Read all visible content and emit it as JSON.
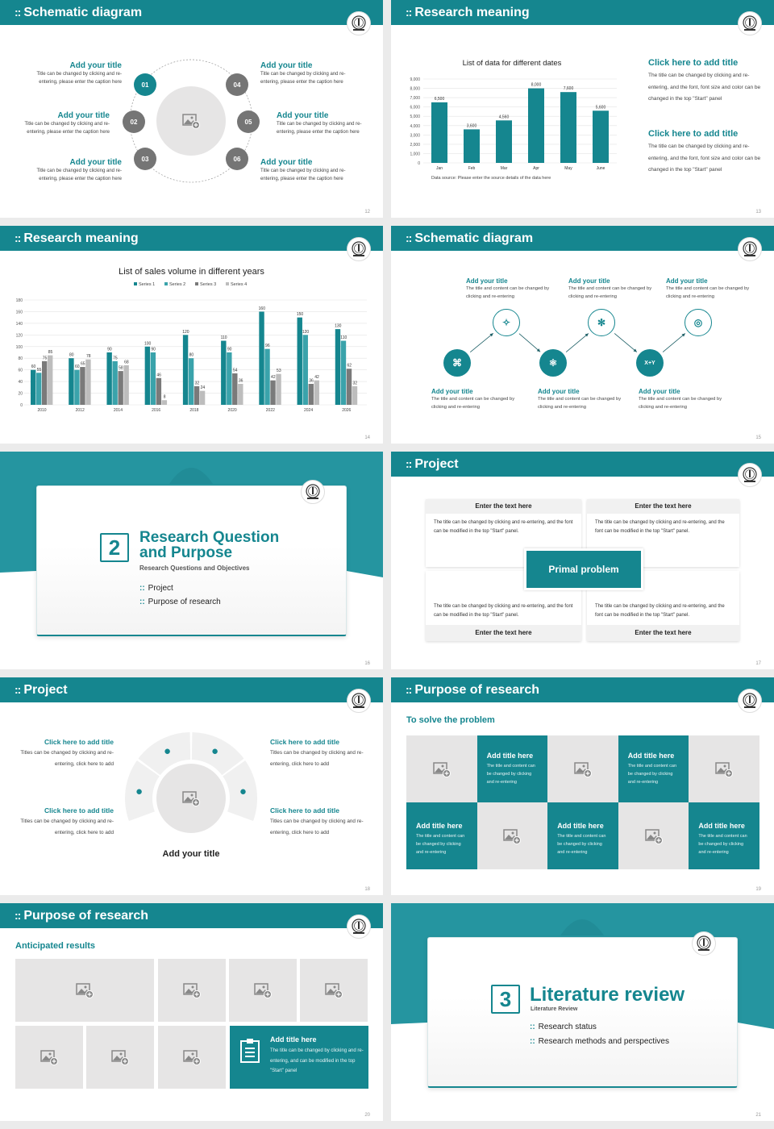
{
  "colors": {
    "accent": "#15868f",
    "accent_light": "#3aa3ab",
    "series3": "#7a7a7a",
    "series4": "#bdbdbd",
    "placeholder": "#e6e5e5"
  },
  "icons": {
    "logo": "university-seal-icon",
    "placeholder": "image-add-icon"
  },
  "slides": {
    "s12": {
      "header": "Schematic diagram",
      "page": "12",
      "items": [
        {
          "num": "01",
          "title": "Add your title",
          "body": "Title can be changed by clicking and re-entering, please enter the caption here"
        },
        {
          "num": "02",
          "title": "Add your title",
          "body": "Title can be changed by clicking and re-entering, please enter the caption here"
        },
        {
          "num": "03",
          "title": "Add your title",
          "body": "Title can be changed by clicking and re-entering, please enter the caption here"
        },
        {
          "num": "04",
          "title": "Add your title",
          "body": "Title can be changed by clicking and re-entering, please enter the caption here"
        },
        {
          "num": "05",
          "title": "Add your title",
          "body": "Title can be changed by clicking and re-entering, please enter the caption here"
        },
        {
          "num": "06",
          "title": "Add your title",
          "body": "Title can be changed by clicking and re-entering, please enter the caption here"
        }
      ]
    },
    "s13": {
      "header": "Research meaning",
      "page": "13",
      "source": "Data source: Please enter the source details of the data here",
      "blocks": [
        {
          "title": "Click here to add title",
          "body": "The title can be changed by clicking and re-entering, and the font, font size and color can be changed in the top \"Start\" panel"
        },
        {
          "title": "Click here to add title",
          "body": "The title can be changed by clicking and re-entering, and the font, font size and color can be changed in the top \"Start\" panel"
        }
      ]
    },
    "s14": {
      "header": "Research meaning",
      "page": "14"
    },
    "s15": {
      "header": "Schematic diagram",
      "page": "15",
      "steps": [
        {
          "title": "Add your title",
          "body": "The title and content can be changed by clicking and re-entering",
          "icon": "scan-network-icon"
        },
        {
          "title": "Add your title",
          "body": "The title and content can be changed by clicking and re-entering",
          "icon": "sparkles-icon"
        },
        {
          "title": "Add your title",
          "body": "The title and content can be changed by clicking and re-entering",
          "icon": "molecule-icon"
        },
        {
          "title": "Add your title",
          "body": "The title and content can be changed by clicking and re-entering",
          "icon": "nodes-icon"
        },
        {
          "title": "Add your title",
          "body": "The title and content can be changed by clicking and re-entering",
          "icon": "xy-formula-icon",
          "label": "X+Y"
        },
        {
          "title": "Add your title",
          "body": "The title and content can be changed by clicking and re-entering",
          "icon": "target-icon"
        }
      ]
    },
    "s16": {
      "page": "16",
      "num": "2",
      "title": "Research Question and Purpose",
      "subtitle": "Research Questions and Objectives",
      "items": [
        "Project",
        "Purpose of research"
      ]
    },
    "s17": {
      "header": "Project",
      "page": "17",
      "center": "Primal problem",
      "boxes": [
        {
          "title": "Enter the text here",
          "body": "The title can be changed by clicking and re-entering, and the font can be modified in the top \"Start\" panel."
        },
        {
          "title": "Enter the text here",
          "body": "The title can be changed by clicking and re-entering, and the font can be modified in the top \"Start\" panel."
        },
        {
          "title": "Enter the text here",
          "body": "The title can be changed by clicking and re-entering, and the font can be modified in the top \"Start\" panel."
        },
        {
          "title": "Enter the text here",
          "body": "The title can be changed by clicking and re-entering, and the font can be modified in the top \"Start\" panel."
        }
      ]
    },
    "s18": {
      "header": "Project",
      "page": "18",
      "caption": "Add your title",
      "items": [
        {
          "title": "Click here to add title",
          "body": "Titles can be changed by clicking and re-entering, click here to add"
        },
        {
          "title": "Click here to add title",
          "body": "Titles can be changed by clicking and re-entering, click here to add"
        },
        {
          "title": "Click here to add title",
          "body": "Titles can be changed by clicking and re-entering, click here to add"
        },
        {
          "title": "Click here to add title",
          "body": "Titles can be changed by clicking and re-entering, click here to add"
        }
      ]
    },
    "s19": {
      "header": "Purpose of research",
      "page": "19",
      "subtitle": "To solve the problem",
      "cell_title": "Add title here",
      "cell_body": "The title and content can be changed by clicking and re-entering"
    },
    "s20": {
      "header": "Purpose of research",
      "page": "20",
      "subtitle": "Anticipated results",
      "feature_title": "Add title here",
      "feature_body": "The title can be changed by clicking and re-entering, and can be modified in the top \"Start\" panel",
      "feature_icon": "clipboard-icon"
    },
    "s21": {
      "page": "21",
      "num": "3",
      "title": "Literature review",
      "subtitle": "Literature Review",
      "items": [
        "Research status",
        "Research methods and perspectives"
      ]
    }
  },
  "chart_data": [
    {
      "type": "bar",
      "title": "List of data for different dates",
      "categories": [
        "Jan",
        "Feb",
        "Mar",
        "Apr",
        "May",
        "June"
      ],
      "values": [
        6500,
        3600,
        4560,
        8000,
        7600,
        5600
      ],
      "data_labels": [
        "6,500",
        "3,600",
        "4,560",
        "8,000",
        "7,600",
        "5,600"
      ],
      "ylim": [
        0,
        9000
      ],
      "yticks": [
        "0",
        "1,000",
        "2,000",
        "3,000",
        "4,000",
        "5,000",
        "6,000",
        "7,000",
        "8,000",
        "9,000"
      ],
      "grid": true
    },
    {
      "type": "bar",
      "title": "List of sales volume in different years",
      "categories": [
        "2010",
        "2012",
        "2014",
        "2016",
        "2018",
        "2020",
        "2022",
        "2024",
        "2026"
      ],
      "series": [
        {
          "name": "Series 1",
          "values": [
            60,
            80,
            90,
            100,
            120,
            110,
            160,
            150,
            130
          ]
        },
        {
          "name": "Series 2",
          "values": [
            55,
            60,
            75,
            90,
            80,
            90,
            96,
            120,
            110
          ]
        },
        {
          "name": "Series 3",
          "values": [
            75,
            65,
            58,
            46,
            32,
            54,
            42,
            36,
            62
          ]
        },
        {
          "name": "Series 4",
          "values": [
            85,
            78,
            68,
            8,
            24,
            36,
            53,
            42,
            32
          ]
        }
      ],
      "ylim": [
        0,
        180
      ],
      "yticks": [
        "0",
        "20",
        "40",
        "60",
        "80",
        "100",
        "120",
        "140",
        "160",
        "180"
      ],
      "legend": "top",
      "grid": true
    }
  ]
}
